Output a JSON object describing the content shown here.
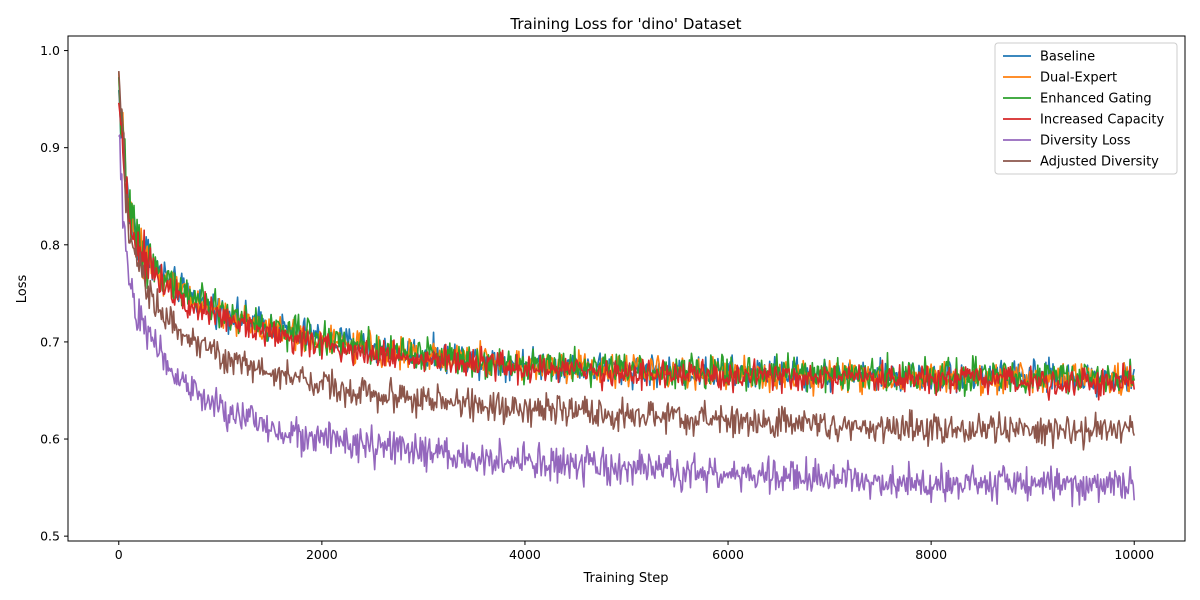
{
  "chart_data": {
    "type": "line",
    "title": "Training Loss for 'dino' Dataset",
    "xlabel": "Training Step",
    "ylabel": "Loss",
    "xlim": [
      -500,
      10500
    ],
    "ylim": [
      0.495,
      1.015
    ],
    "x_ticks": [
      0,
      2000,
      4000,
      6000,
      8000,
      10000
    ],
    "y_ticks": [
      0.5,
      0.6,
      0.7,
      0.8,
      0.9,
      1.0
    ],
    "y_tick_labels": [
      "0.5",
      "0.6",
      "0.7",
      "0.8",
      "0.9",
      "1.0"
    ],
    "legend_position": "top-right",
    "grid": false,
    "series": [
      {
        "name": "Baseline",
        "color": "#1f77b4",
        "x": [
          0,
          100,
          200,
          400,
          600,
          800,
          1000,
          1500,
          2000,
          2500,
          3000,
          3500,
          4000,
          4500,
          5000,
          5500,
          6000,
          6500,
          7000,
          7500,
          8000,
          8500,
          9000,
          9500,
          10000
        ],
        "y": [
          0.955,
          0.835,
          0.8,
          0.773,
          0.755,
          0.742,
          0.732,
          0.716,
          0.704,
          0.695,
          0.688,
          0.682,
          0.678,
          0.675,
          0.672,
          0.67,
          0.668,
          0.667,
          0.666,
          0.665,
          0.665,
          0.664,
          0.664,
          0.663,
          0.663
        ],
        "noise": 0.017
      },
      {
        "name": "Dual-Expert",
        "color": "#ff7f0e",
        "x": [
          0,
          100,
          200,
          400,
          600,
          800,
          1000,
          1500,
          2000,
          2500,
          3000,
          3500,
          4000,
          4500,
          5000,
          5500,
          6000,
          6500,
          7000,
          7500,
          8000,
          8500,
          9000,
          9500,
          10000
        ],
        "y": [
          0.96,
          0.832,
          0.797,
          0.77,
          0.752,
          0.739,
          0.729,
          0.713,
          0.701,
          0.693,
          0.686,
          0.681,
          0.677,
          0.674,
          0.671,
          0.669,
          0.667,
          0.666,
          0.665,
          0.664,
          0.664,
          0.663,
          0.663,
          0.662,
          0.662
        ],
        "noise": 0.017
      },
      {
        "name": "Enhanced Gating",
        "color": "#2ca02c",
        "x": [
          0,
          100,
          200,
          400,
          600,
          800,
          1000,
          1500,
          2000,
          2500,
          3000,
          3500,
          4000,
          4500,
          5000,
          5500,
          6000,
          6500,
          7000,
          7500,
          8000,
          8500,
          9000,
          9500,
          10000
        ],
        "y": [
          0.965,
          0.834,
          0.799,
          0.772,
          0.754,
          0.741,
          0.731,
          0.715,
          0.703,
          0.694,
          0.687,
          0.682,
          0.678,
          0.675,
          0.673,
          0.671,
          0.669,
          0.668,
          0.667,
          0.666,
          0.665,
          0.665,
          0.664,
          0.664,
          0.663
        ],
        "noise": 0.018
      },
      {
        "name": "Increased Capacity",
        "color": "#d62728",
        "x": [
          0,
          100,
          200,
          400,
          600,
          800,
          1000,
          1500,
          2000,
          2500,
          3000,
          3500,
          4000,
          4500,
          5000,
          5500,
          6000,
          6500,
          7000,
          7500,
          8000,
          8500,
          9000,
          9500,
          10000
        ],
        "y": [
          0.95,
          0.828,
          0.793,
          0.766,
          0.748,
          0.735,
          0.725,
          0.709,
          0.697,
          0.689,
          0.682,
          0.677,
          0.673,
          0.67,
          0.668,
          0.666,
          0.664,
          0.663,
          0.662,
          0.661,
          0.661,
          0.66,
          0.66,
          0.659,
          0.659
        ],
        "noise": 0.016
      },
      {
        "name": "Diversity Loss",
        "color": "#9467bd",
        "x": [
          0,
          100,
          200,
          400,
          600,
          800,
          1000,
          1500,
          2000,
          2500,
          3000,
          3500,
          4000,
          4500,
          5000,
          5500,
          6000,
          6500,
          7000,
          7500,
          8000,
          8500,
          9000,
          9500,
          10000
        ],
        "y": [
          0.9,
          0.76,
          0.725,
          0.69,
          0.662,
          0.643,
          0.63,
          0.612,
          0.6,
          0.592,
          0.586,
          0.58,
          0.576,
          0.572,
          0.569,
          0.566,
          0.563,
          0.561,
          0.559,
          0.557,
          0.556,
          0.555,
          0.554,
          0.553,
          0.553
        ],
        "noise": 0.019
      },
      {
        "name": "Adjusted Diversity",
        "color": "#8c564b",
        "x": [
          0,
          100,
          200,
          400,
          600,
          800,
          1000,
          1500,
          2000,
          2500,
          3000,
          3500,
          4000,
          4500,
          5000,
          5500,
          6000,
          6500,
          7000,
          7500,
          8000,
          8500,
          9000,
          9500,
          10000
        ],
        "y": [
          0.98,
          0.8,
          0.77,
          0.735,
          0.712,
          0.697,
          0.686,
          0.668,
          0.656,
          0.647,
          0.64,
          0.635,
          0.631,
          0.627,
          0.624,
          0.621,
          0.619,
          0.617,
          0.615,
          0.613,
          0.612,
          0.611,
          0.61,
          0.609,
          0.608
        ],
        "noise": 0.017
      }
    ]
  }
}
